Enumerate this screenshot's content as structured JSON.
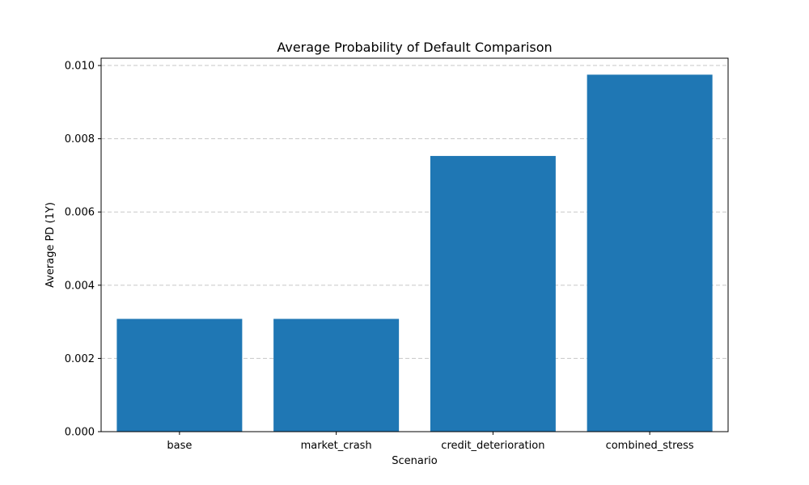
{
  "chart_data": {
    "type": "bar",
    "title": "Average Probability of Default Comparison",
    "xlabel": "Scenario",
    "ylabel": "Average PD (1Y)",
    "categories": [
      "base",
      "market_crash",
      "credit_deterioration",
      "combined_stress"
    ],
    "values": [
      0.00308,
      0.00308,
      0.00753,
      0.00975
    ],
    "ylim": [
      0,
      0.0102
    ],
    "yticks": [
      0.0,
      0.002,
      0.004,
      0.006,
      0.008,
      0.01
    ],
    "ytick_labels": [
      "0.000",
      "0.002",
      "0.004",
      "0.006",
      "0.008",
      "0.010"
    ],
    "grid": "y dashed",
    "bar_color": "#1f77b4",
    "grid_color": "#c7c7c7"
  }
}
